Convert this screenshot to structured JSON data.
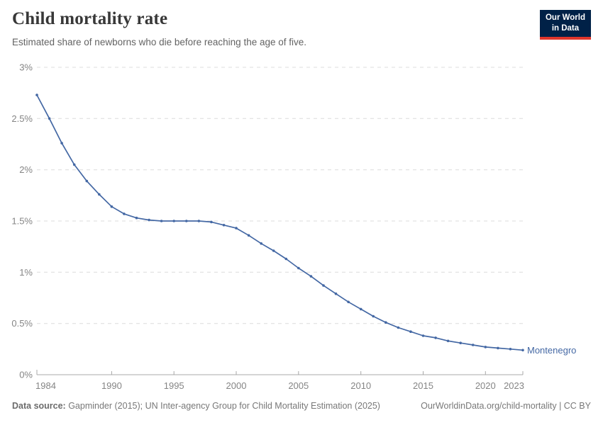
{
  "header": {
    "title": "Child mortality rate",
    "subtitle": "Estimated share of newborns who die before reaching the age of five."
  },
  "logo": {
    "line1": "Our World",
    "line2": "in Data",
    "bg_color": "#002147",
    "accent_color": "#e0362c"
  },
  "chart_data": {
    "type": "line",
    "title": "Child mortality rate",
    "subtitle": "Estimated share of newborns who die before reaching the age of five.",
    "x": [
      1984,
      1985,
      1986,
      1987,
      1988,
      1989,
      1990,
      1991,
      1992,
      1993,
      1994,
      1995,
      1996,
      1997,
      1998,
      1999,
      2000,
      2001,
      2002,
      2003,
      2004,
      2005,
      2006,
      2007,
      2008,
      2009,
      2010,
      2011,
      2012,
      2013,
      2014,
      2015,
      2016,
      2017,
      2018,
      2019,
      2020,
      2021,
      2022,
      2023
    ],
    "series": [
      {
        "name": "Montenegro",
        "color": "#4468a4",
        "values": [
          2.73,
          2.5,
          2.26,
          2.05,
          1.89,
          1.76,
          1.64,
          1.57,
          1.53,
          1.51,
          1.5,
          1.5,
          1.5,
          1.5,
          1.49,
          1.46,
          1.43,
          1.36,
          1.28,
          1.21,
          1.13,
          1.04,
          0.96,
          0.87,
          0.79,
          0.71,
          0.64,
          0.57,
          0.51,
          0.46,
          0.42,
          0.38,
          0.36,
          0.33,
          0.31,
          0.29,
          0.27,
          0.26,
          0.25,
          0.24
        ]
      }
    ],
    "xlabel": "",
    "ylabel": "",
    "ylim": [
      0,
      3
    ],
    "yticks": [
      0,
      0.5,
      1,
      1.5,
      2,
      2.5,
      3
    ],
    "ytick_labels": [
      "0%",
      "0.5%",
      "1%",
      "1.5%",
      "2%",
      "2.5%",
      "3%"
    ],
    "xticks": [
      1984,
      1990,
      1995,
      2000,
      2005,
      2010,
      2015,
      2020,
      2023
    ],
    "grid": "horizontal-dashed",
    "legend_position": "end-of-line-label"
  },
  "footer": {
    "source_label": "Data source:",
    "source_text": " Gapminder (2015); UN Inter-agency Group for Child Mortality Estimation (2025)",
    "link_text": "OurWorldinData.org/child-mortality | CC BY"
  }
}
